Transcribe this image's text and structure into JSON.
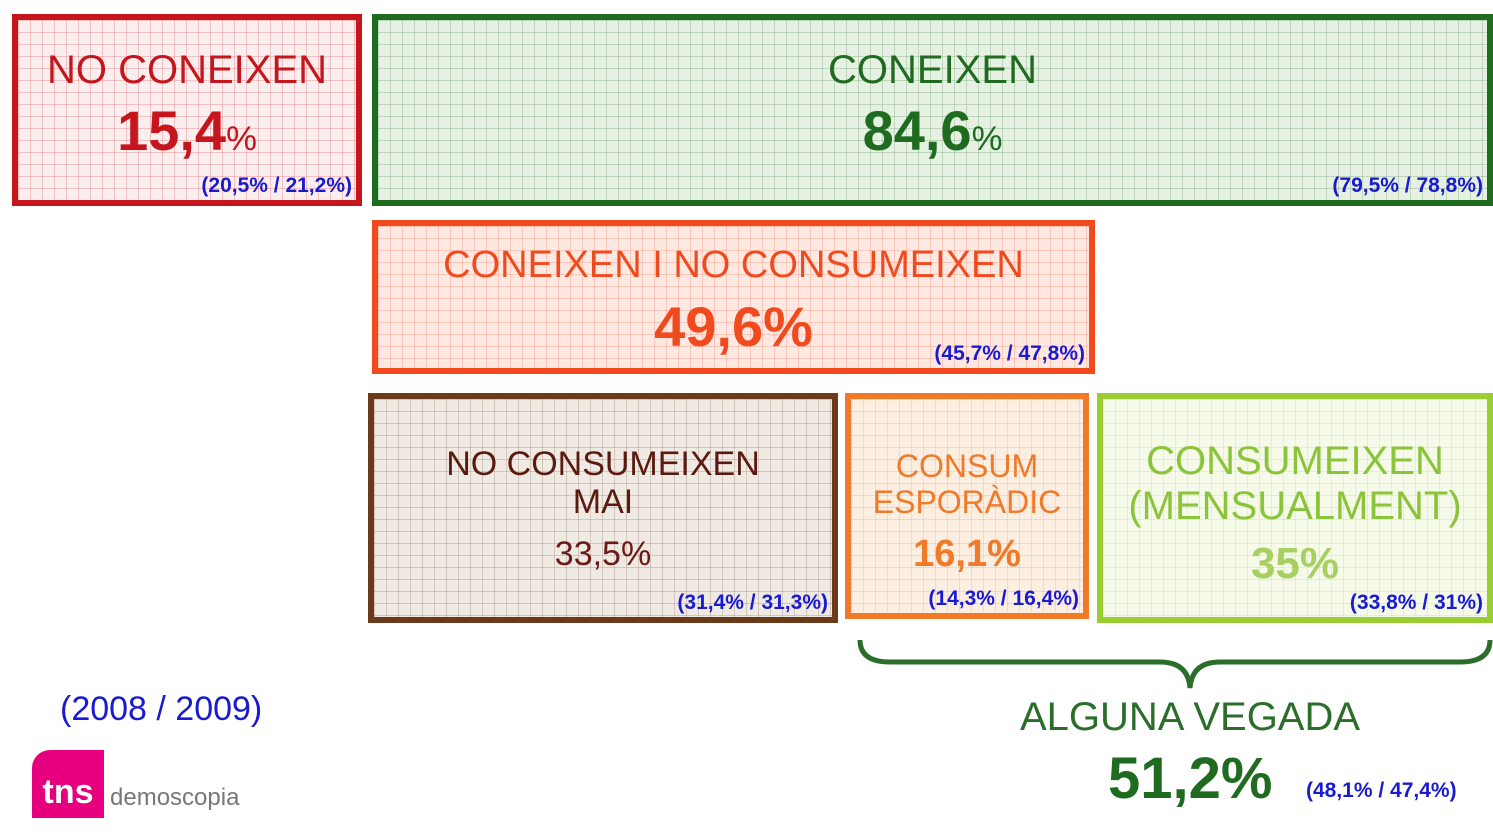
{
  "boxes": [
    {
      "label": [
        "NO CONEIXEN"
      ],
      "value": "15,4",
      "unit": "%",
      "comparison": "(20,5% / 21,2%)"
    },
    {
      "label": [
        "CONEIXEN"
      ],
      "value": "84,6",
      "unit": "%",
      "comparison": "(79,5% / 78,8%)"
    },
    {
      "label": [
        "CONEIXEN I NO CONSUMEIXEN"
      ],
      "value": "49,6%",
      "comparison": "(45,7% / 47,8%)"
    },
    {
      "label": [
        "NO CONSUMEIXEN",
        "MAI"
      ],
      "value": "33,5%",
      "comparison": "(31,4% / 31,3%)"
    },
    {
      "label": [
        "CONSUM",
        "ESPORÀDIC"
      ],
      "value": "16,1%",
      "comparison": "(14,3% / 16,4%)"
    },
    {
      "label": [
        "CONSUMEIXEN",
        "(MENSUALMENT)"
      ],
      "value": "35%",
      "comparison": "(33,8% / 31%)"
    }
  ],
  "summary": {
    "label": "ALGUNA VEGADA",
    "value": "51,2%",
    "comparison": "(48,1% / 47,4%)"
  },
  "legend": "(2008 / 2009)",
  "logo": {
    "mark": "tns",
    "text": "demoscopia"
  }
}
